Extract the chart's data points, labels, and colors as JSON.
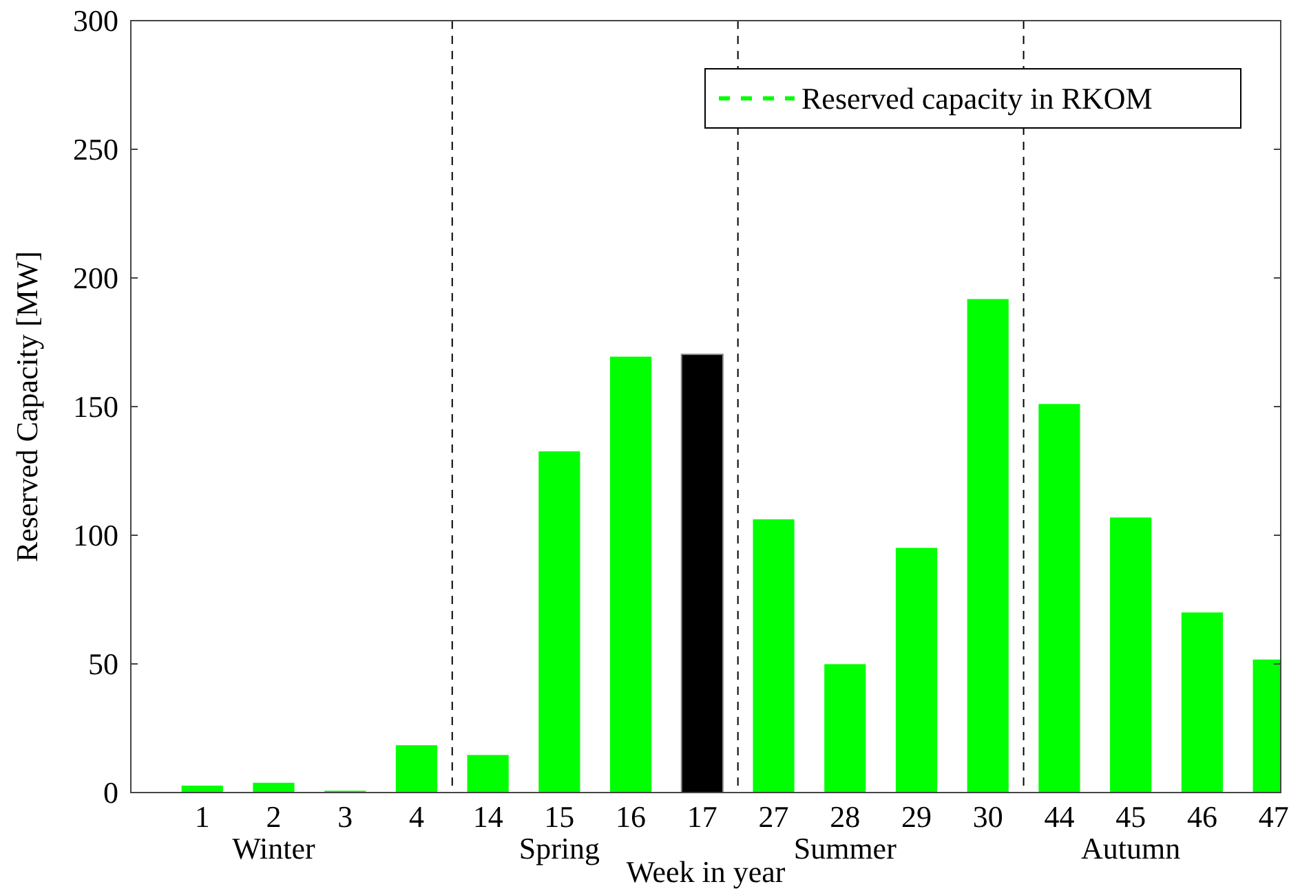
{
  "chart_data": {
    "type": "bar",
    "xlabel": "Week in year",
    "ylabel": "Reserved Capacity [MW]",
    "categories": [
      "1",
      "2",
      "3",
      "4",
      "14",
      "15",
      "16",
      "17",
      "27",
      "28",
      "29",
      "30",
      "44",
      "45",
      "46",
      "47"
    ],
    "series": [
      {
        "name": "Reserved capacity in RKOM",
        "color": "#00ff00",
        "values": [
          2.7,
          3.8,
          0.7,
          18.4,
          14.6,
          132.6,
          169.4,
          170.3,
          106.2,
          49.9,
          95.1,
          191.8,
          151,
          106.9,
          70,
          51.7
        ],
        "colors": [
          "#00ff00",
          "#00ff00",
          "#00ff00",
          "#00ff00",
          "#00ff00",
          "#00ff00",
          "#00ff00",
          "#000000",
          "#00ff00",
          "#00ff00",
          "#00ff00",
          "#00ff00",
          "#00ff00",
          "#00ff00",
          "#00ff00",
          "#00ff00"
        ]
      }
    ],
    "ylim": [
      0,
      300
    ],
    "yticks": [
      0,
      50,
      100,
      150,
      200,
      250,
      300
    ],
    "grid": false,
    "legend": "top right",
    "annotations": [
      "Winter",
      "Spring",
      "Summer",
      "Autumn"
    ]
  }
}
